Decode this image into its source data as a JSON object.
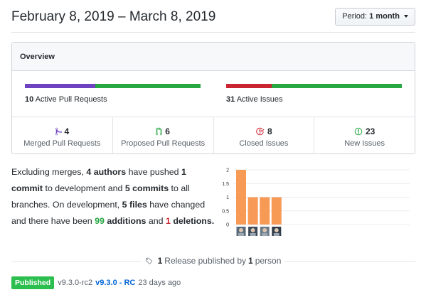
{
  "header": {
    "title": "February 8, 2019 – March 8, 2019",
    "period_prefix": "Period:",
    "period_value": "1 month"
  },
  "overview": {
    "title": "Overview",
    "pull_requests": {
      "count": "10",
      "label": "Active Pull Requests",
      "merged_fraction": 0.4,
      "proposed_fraction": 0.6
    },
    "issues": {
      "count": "31",
      "label": "Active Issues",
      "closed_fraction": 0.26,
      "new_fraction": 0.74
    },
    "stats": [
      {
        "value": "4",
        "label": "Merged Pull Requests",
        "icon": "git-merge-icon",
        "color": "#6f42c1"
      },
      {
        "value": "6",
        "label": "Proposed Pull Requests",
        "icon": "git-pull-request-icon",
        "color": "#28a745"
      },
      {
        "value": "8",
        "label": "Closed Issues",
        "icon": "issue-closed-icon",
        "color": "#cb2431"
      },
      {
        "value": "23",
        "label": "New Issues",
        "icon": "issue-opened-icon",
        "color": "#28a745"
      }
    ]
  },
  "summary": {
    "t1": "Excluding merges, ",
    "authors": "4 authors",
    "t2": " have pushed ",
    "commits_count": "1",
    "t3": " commit",
    "t4": " to development and ",
    "commits_all": "5 commits",
    "t5": " to all branches. On development, ",
    "files": "5 files",
    "t6": " have changed and there have been ",
    "additions": "99",
    "t7": " additions",
    "t8": " and ",
    "deletions": "1",
    "t9": " deletions."
  },
  "chart_data": {
    "type": "bar",
    "categories": [
      "author 1",
      "author 2",
      "author 3",
      "author 4"
    ],
    "values": [
      2,
      1,
      1,
      1
    ],
    "ylim": [
      0,
      2
    ],
    "yticks": [
      "2",
      "1.5",
      "1",
      "0.5",
      "0"
    ],
    "bar_color": "#f79a55",
    "grid": true
  },
  "release": {
    "count": "1",
    "text_mid": "Release published by",
    "people": "1",
    "text_end": "person",
    "badge": "Published",
    "tag": "v9.3.0-rc2",
    "name": "v9.3.0 - RC",
    "age": "23 days ago"
  },
  "colors": {
    "merged": "#6f42c1",
    "proposed": "#28a745",
    "closed": "#cb2431",
    "new": "#28a745",
    "published_badge": "#2cbe4e"
  }
}
